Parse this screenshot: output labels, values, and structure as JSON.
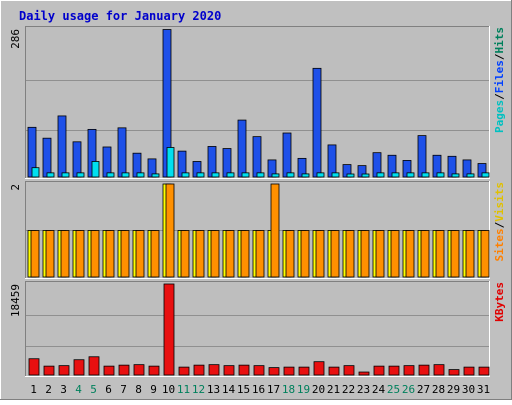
{
  "chart_data": {
    "type": "bar",
    "title": "Daily usage for January 2020",
    "categories": [
      "1",
      "2",
      "3",
      "4",
      "5",
      "6",
      "7",
      "8",
      "9",
      "10",
      "11",
      "12",
      "13",
      "14",
      "15",
      "16",
      "17",
      "18",
      "19",
      "20",
      "21",
      "22",
      "23",
      "24",
      "25",
      "26",
      "27",
      "28",
      "29",
      "30",
      "31"
    ],
    "weekend_days": [
      "4",
      "5",
      "11",
      "12",
      "18",
      "19",
      "25",
      "26"
    ],
    "panels": [
      {
        "id": "hits_files_pages",
        "ymax": 286,
        "ymax_label": "286",
        "legend": [
          {
            "text": "Pages",
            "color": "#00c0c0"
          },
          {
            "text": "/",
            "color": "#000000"
          },
          {
            "text": "Files",
            "color": "#0040ff"
          },
          {
            "text": "/",
            "color": "#000000"
          },
          {
            "text": "Hits",
            "color": "#00805c"
          }
        ],
        "series": [
          {
            "name": "Hits",
            "color": "#00805c",
            "values": [
              0,
              0,
              0,
              0,
              0,
              0,
              0,
              0,
              0,
              0,
              0,
              0,
              0,
              0,
              0,
              0,
              0,
              0,
              0,
              0,
              0,
              0,
              0,
              0,
              0,
              0,
              0,
              0,
              0,
              0,
              0
            ]
          },
          {
            "name": "Files",
            "color": "#1040e0",
            "values": [
              96,
              75,
              118,
              68,
              92,
              58,
              95,
              46,
              35,
              285,
              50,
              30,
              59,
              55,
              110,
              78,
              33,
              85,
              36,
              210,
              62,
              24,
              22,
              47,
              42,
              32,
              80,
              42,
              40,
              33,
              26
            ]
          },
          {
            "name": "Pages",
            "color": "#00e0e0",
            "values": [
              18,
              8,
              8,
              8,
              30,
              8,
              8,
              8,
              6,
              57,
              8,
              8,
              8,
              8,
              8,
              8,
              6,
              8,
              6,
              8,
              8,
              4,
              4,
              8,
              8,
              8,
              8,
              8,
              6,
              6,
              8
            ]
          }
        ]
      },
      {
        "id": "visits_sites",
        "ymax": 2,
        "ymax_label": "2",
        "legend": [
          {
            "text": "Sites",
            "color": "#ff8000"
          },
          {
            "text": "/",
            "color": "#000000"
          },
          {
            "text": "Visits",
            "color": "#e0c000"
          }
        ],
        "series": [
          {
            "name": "Visits",
            "color": "#ffff00",
            "values": [
              1,
              1,
              1,
              1,
              1,
              1,
              1,
              1,
              1,
              2,
              1,
              1,
              1,
              1,
              1,
              1,
              1,
              1,
              1,
              1,
              1,
              1,
              1,
              1,
              1,
              1,
              1,
              1,
              1,
              1,
              1
            ]
          },
          {
            "name": "Sites",
            "color": "#ff8c00",
            "values": [
              1,
              1,
              1,
              1,
              1,
              1,
              1,
              1,
              1,
              2,
              1,
              1,
              1,
              1,
              1,
              1,
              2,
              1,
              1,
              1,
              1,
              1,
              1,
              1,
              1,
              1,
              1,
              1,
              1,
              1,
              1
            ]
          }
        ]
      },
      {
        "id": "kbytes",
        "ymax": 18459,
        "ymax_label": "18459",
        "legend": [
          {
            "text": "KBytes",
            "color": "#e00000"
          }
        ],
        "series": [
          {
            "name": "KBytes",
            "color": "#e00000",
            "values": [
              3300,
              1800,
              1900,
              3100,
              3700,
              1800,
              2000,
              2100,
              1800,
              18459,
              1600,
              2000,
              2100,
              1900,
              2000,
              1900,
              1500,
              1600,
              1600,
              2700,
              1600,
              1900,
              600,
              1800,
              1800,
              1900,
              2000,
              2100,
              1100,
              1600,
              1600
            ]
          }
        ]
      }
    ]
  }
}
